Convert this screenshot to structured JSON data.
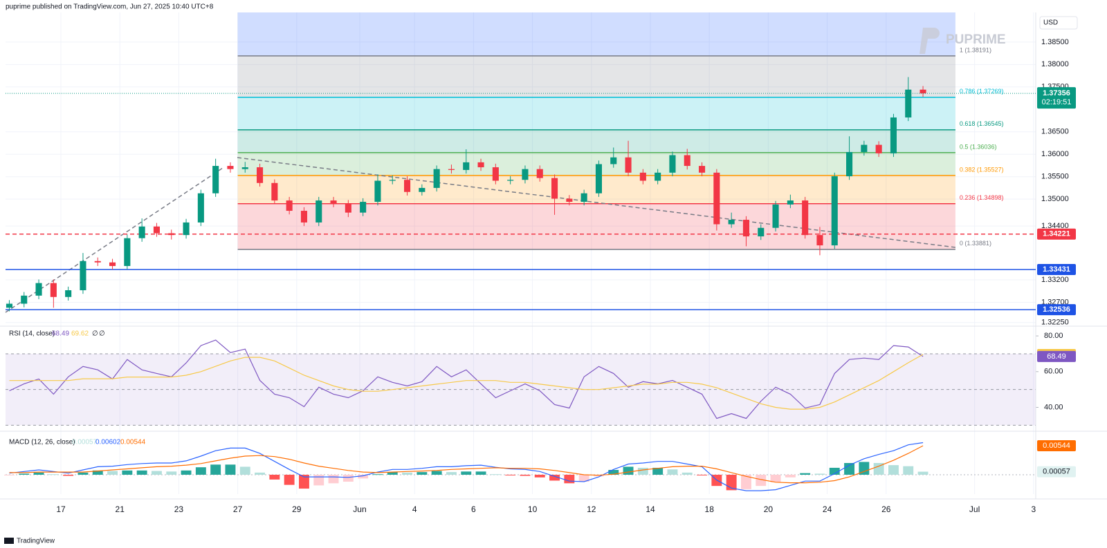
{
  "header": "puprime published on TradingView.com, Jun 27, 2025 10:40 UTC+8",
  "brand": "PUPRIME",
  "footer": "TradingView",
  "chart_data": {
    "type": "candlestick",
    "currency": "USD",
    "countdown": "02:19:51",
    "up_color": "#089981",
    "down_color": "#f23645",
    "grid": true,
    "xlim": [
      -1.878,
      33.075
    ],
    "xticks": [
      {
        "value": 0,
        "label": "17"
      },
      {
        "value": 2,
        "label": "21"
      },
      {
        "value": 4,
        "label": "23"
      },
      {
        "value": 6,
        "label": "27"
      },
      {
        "value": 8,
        "label": "29"
      },
      {
        "value": 10.14,
        "label": "Jun"
      },
      {
        "value": 12,
        "label": "4"
      },
      {
        "value": 14,
        "label": "6"
      },
      {
        "value": 16,
        "label": "10"
      },
      {
        "value": 18,
        "label": "12"
      },
      {
        "value": 20,
        "label": "14"
      },
      {
        "value": 22,
        "label": "18"
      },
      {
        "value": 24,
        "label": "20"
      },
      {
        "value": 26,
        "label": "24"
      },
      {
        "value": 28,
        "label": "26"
      },
      {
        "value": 31,
        "label": "Jul"
      },
      {
        "value": 33,
        "label": "3"
      }
    ],
    "ylim": [
      1.322,
      1.3916
    ],
    "yticks": [
      {
        "value": 1.385,
        "label": "1.38500"
      },
      {
        "value": 1.38,
        "label": "1.38000"
      },
      {
        "value": 1.375,
        "label": "1.37500"
      },
      {
        "value": 1.365,
        "label": "1.36500"
      },
      {
        "value": 1.36,
        "label": "1.36000"
      },
      {
        "value": 1.355,
        "label": "1.35500"
      },
      {
        "value": 1.35,
        "label": "1.35000"
      },
      {
        "value": 1.344,
        "label": "1.34400"
      },
      {
        "value": 1.332,
        "label": "1.33200"
      },
      {
        "value": 1.327,
        "label": "1.32700"
      },
      {
        "value": 1.3225,
        "label": "1.32250"
      }
    ],
    "x": [
      -1.75,
      -1.25,
      -0.75,
      -0.25,
      0.25,
      0.75,
      1.25,
      1.75,
      2.25,
      2.75,
      3.25,
      3.75,
      4.25,
      4.75,
      5.25,
      5.75,
      6.25,
      6.75,
      7.25,
      7.75,
      8.25,
      8.75,
      9.25,
      9.75,
      10.25,
      10.75,
      11.25,
      11.75,
      12.25,
      12.75,
      13.25,
      13.75,
      14.25,
      14.75,
      15.25,
      15.75,
      16.25,
      16.75,
      17.25,
      17.75,
      18.25,
      18.75,
      19.25,
      19.75,
      20.25,
      20.75,
      21.25,
      21.75,
      22.25,
      22.75,
      23.25,
      23.75,
      24.25,
      24.75,
      25.25,
      25.75,
      26.25,
      26.75,
      27.25,
      27.75,
      28.25,
      28.75,
      29.25
    ],
    "open": [
      1.3258,
      1.3267,
      1.3285,
      1.3313,
      1.3282,
      1.3297,
      1.3362,
      1.3359,
      1.3351,
      1.3413,
      1.3439,
      1.3424,
      1.342,
      1.3448,
      1.3513,
      1.3574,
      1.3567,
      1.3571,
      1.3536,
      1.3497,
      1.3474,
      1.3448,
      1.3497,
      1.349,
      1.347,
      1.3494,
      1.3541,
      1.3543,
      1.3516,
      1.3525,
      1.3567,
      1.3565,
      1.3582,
      1.3571,
      1.3541,
      1.3543,
      1.3567,
      1.3547,
      1.3501,
      1.3494,
      1.3513,
      1.3578,
      1.3593,
      1.3559,
      1.3541,
      1.3559,
      1.3598,
      1.3574,
      1.3559,
      1.3444,
      1.3454,
      1.3417,
      1.3436,
      1.3488,
      1.3497,
      1.342,
      1.3397,
      1.3551,
      1.3605,
      1.3621,
      1.3602,
      1.3682,
      1.3744
    ],
    "high": [
      1.3275,
      1.3293,
      1.3321,
      1.3321,
      1.3305,
      1.338,
      1.337,
      1.3367,
      1.3421,
      1.3457,
      1.3447,
      1.3432,
      1.3456,
      1.3521,
      1.359,
      1.3582,
      1.3583,
      1.3579,
      1.3544,
      1.3505,
      1.3482,
      1.3505,
      1.3505,
      1.3498,
      1.3502,
      1.3555,
      1.3553,
      1.3551,
      1.3533,
      1.3575,
      1.3577,
      1.3611,
      1.359,
      1.3579,
      1.3551,
      1.3575,
      1.3575,
      1.3555,
      1.3509,
      1.3521,
      1.3586,
      1.3615,
      1.363,
      1.3567,
      1.3567,
      1.3606,
      1.3612,
      1.3582,
      1.3567,
      1.347,
      1.3462,
      1.3444,
      1.3496,
      1.351,
      1.3505,
      1.3438,
      1.3559,
      1.364,
      1.363,
      1.3629,
      1.369,
      1.3772,
      1.3752
    ],
    "low": [
      1.325,
      1.3259,
      1.3277,
      1.3258,
      1.3274,
      1.3289,
      1.3351,
      1.3343,
      1.3343,
      1.3405,
      1.3416,
      1.341,
      1.3412,
      1.344,
      1.3505,
      1.3559,
      1.3559,
      1.3528,
      1.3489,
      1.3466,
      1.344,
      1.344,
      1.3482,
      1.346,
      1.3462,
      1.3486,
      1.3533,
      1.3508,
      1.3508,
      1.3517,
      1.3557,
      1.3557,
      1.3563,
      1.3533,
      1.3533,
      1.3535,
      1.3539,
      1.3465,
      1.3486,
      1.3486,
      1.3505,
      1.357,
      1.3551,
      1.3533,
      1.3533,
      1.3551,
      1.3566,
      1.3551,
      1.343,
      1.3436,
      1.3395,
      1.3409,
      1.3428,
      1.348,
      1.3412,
      1.3375,
      1.3389,
      1.3543,
      1.3597,
      1.3594,
      1.3594,
      1.3674,
      1.3728
    ],
    "close": [
      1.3267,
      1.3285,
      1.3313,
      1.3282,
      1.3297,
      1.3362,
      1.3359,
      1.3351,
      1.3413,
      1.3439,
      1.3424,
      1.342,
      1.3448,
      1.3513,
      1.3574,
      1.3567,
      1.3571,
      1.3536,
      1.3497,
      1.3474,
      1.3448,
      1.3497,
      1.349,
      1.347,
      1.3494,
      1.3541,
      1.3543,
      1.3516,
      1.3525,
      1.3567,
      1.3565,
      1.3582,
      1.3571,
      1.3541,
      1.3543,
      1.3567,
      1.3547,
      1.3501,
      1.3494,
      1.3513,
      1.3578,
      1.3593,
      1.3559,
      1.3541,
      1.3559,
      1.3598,
      1.3574,
      1.3559,
      1.3444,
      1.3454,
      1.3417,
      1.3436,
      1.3488,
      1.3497,
      1.342,
      1.3397,
      1.3551,
      1.3605,
      1.3621,
      1.3602,
      1.3682,
      1.3744,
      1.37356
    ],
    "last_price_color": "#089981",
    "fib": {
      "x_range": [
        6,
        30.35
      ],
      "top_color": "#2962ff",
      "levels": [
        {
          "ratio": 1,
          "price": 1.38191,
          "label": "1 (1.38191)",
          "color": "#787b86"
        },
        {
          "ratio": 0.786,
          "price": 1.37269,
          "label": "0.786 (1.37269)",
          "color": "#00bcd4"
        },
        {
          "ratio": 0.618,
          "price": 1.36545,
          "label": "0.618 (1.36545)",
          "color": "#089981"
        },
        {
          "ratio": 0.5,
          "price": 1.36036,
          "label": "0.5 (1.36036)",
          "color": "#4caf50"
        },
        {
          "ratio": 0.382,
          "price": 1.35527,
          "label": "0.382 (1.35527)",
          "color": "#ff9800"
        },
        {
          "ratio": 0.236,
          "price": 1.34898,
          "label": "0.236 (1.34898)",
          "color": "#f23645"
        },
        {
          "ratio": 0,
          "price": 1.33881,
          "label": "0 (1.33881)",
          "color": "#787b86"
        }
      ]
    },
    "levels": [
      {
        "price": 1.34221,
        "color": "#f23645",
        "dashed": true
      },
      {
        "price": 1.33431,
        "color": "#1e53e5",
        "dashed": false
      },
      {
        "price": 1.32536,
        "color": "#1e53e5",
        "dashed": false
      }
    ],
    "rsi": {
      "title": "RSI (14, close)",
      "na_marks": [
        "∅",
        "∅"
      ],
      "ylim": [
        28.2,
        84.3
      ],
      "yticks": [
        {
          "value": 80,
          "label": "80.00"
        },
        {
          "value": 60,
          "label": "60.00"
        },
        {
          "value": 40,
          "label": "40.00"
        }
      ],
      "bands": [
        70,
        50,
        30
      ],
      "band_color": "#7e57c2",
      "series": [
        {
          "color": "#7e57c2",
          "values": [
            49.3,
            53.2,
            55.9,
            47.4,
            57.1,
            62.9,
            61.0,
            55.9,
            66.8,
            61.0,
            59.0,
            57.1,
            64.9,
            74.6,
            77.7,
            70.7,
            72.6,
            55.1,
            47.4,
            45.4,
            40.4,
            51.3,
            47.4,
            45.4,
            49.3,
            57.1,
            54.0,
            52.0,
            54.4,
            62.9,
            57.1,
            61.0,
            53.2,
            45.4,
            49.3,
            53.2,
            49.3,
            41.6,
            39.6,
            57.1,
            62.9,
            59.0,
            51.3,
            54.4,
            53.2,
            55.1,
            51.3,
            47.4,
            33.8,
            36.5,
            33.8,
            43.5,
            51.3,
            47.4,
            39.6,
            41.6,
            59.0,
            66.8,
            67.6,
            66.8,
            74.6,
            73.8,
            68.49
          ]
        },
        {
          "color": "#f7c948",
          "values": [
            55,
            55,
            55,
            55,
            55,
            56,
            56,
            56,
            57,
            57,
            57,
            57,
            58,
            60,
            63,
            66,
            68,
            68,
            66,
            62,
            58,
            55,
            52,
            50,
            49,
            49,
            50,
            51,
            52,
            53,
            54,
            55,
            55,
            55,
            54,
            54,
            53,
            52,
            51,
            50,
            50,
            51,
            52,
            53,
            53,
            54,
            54,
            53,
            51,
            48,
            45,
            42,
            40,
            39,
            39,
            40,
            43,
            47,
            51,
            55,
            60,
            65,
            69.62
          ]
        }
      ]
    },
    "macd": {
      "title": "MACD (12, 26, close)",
      "ylim": [
        -0.00363,
        0.00764
      ],
      "series": [
        {
          "kind": "histogram",
          "colors": [
            "#26a69a",
            "#b2dfdb",
            "#ffcdd2",
            "#ff5252"
          ],
          "values": [
            -0.0001,
            0.0002,
            0.0004,
            0.0001,
            -0.0002,
            0.0004,
            0.0008,
            0.0007,
            0.0008,
            0.0008,
            0.0007,
            0.0006,
            0.0008,
            0.0014,
            0.0019,
            0.0019,
            0.0015,
            0.0004,
            -0.0009,
            -0.0019,
            -0.0026,
            -0.002,
            -0.0016,
            -0.0013,
            -0.0007,
            0.0001,
            0.0005,
            0.0004,
            0.0005,
            0.0007,
            0.0005,
            0.0006,
            0.0006,
            0.0001,
            -0.0001,
            -0.0002,
            -0.0005,
            -0.0011,
            -0.0016,
            -0.0013,
            -0.0003,
            0.0009,
            0.0015,
            0.0013,
            0.0013,
            0.001,
            0.0004,
            -0.0001,
            -0.0021,
            -0.0029,
            -0.0027,
            -0.0021,
            -0.0014,
            -0.0005,
            0.0003,
            0.0002,
            0.0013,
            0.0022,
            0.0024,
            0.0022,
            0.0018,
            0.0016,
            0.00057
          ]
        },
        {
          "kind": "line",
          "color": "#2962ff",
          "values": [
            0.0003,
            0.0006,
            0.0009,
            0.0006,
            0.0003,
            0.0009,
            0.0015,
            0.0016,
            0.0019,
            0.0021,
            0.0022,
            0.0022,
            0.0026,
            0.0035,
            0.0045,
            0.005,
            0.005,
            0.004,
            0.0025,
            0.001,
            -0.0004,
            -0.0004,
            -0.0004,
            -0.0005,
            -0.0002,
            0.0005,
            0.001,
            0.001,
            0.0012,
            0.0015,
            0.0015,
            0.0017,
            0.0018,
            0.0014,
            0.0011,
            0.001,
            0.0006,
            -0.0003,
            -0.0012,
            -0.0013,
            -0.0004,
            0.001,
            0.002,
            0.0022,
            0.0025,
            0.0025,
            0.002,
            0.0015,
            -0.001,
            -0.0025,
            -0.003,
            -0.003,
            -0.0028,
            -0.002,
            -0.0012,
            -0.0012,
            0.0002,
            0.0018,
            0.003,
            0.0038,
            0.0045,
            0.0056,
            0.00602
          ]
        },
        {
          "kind": "line",
          "color": "#ff6d00",
          "values": [
            0.0004,
            0.0004,
            0.0005,
            0.0005,
            0.0005,
            0.0005,
            0.0007,
            0.0009,
            0.0011,
            0.0013,
            0.0015,
            0.0016,
            0.0018,
            0.0021,
            0.0026,
            0.0031,
            0.0035,
            0.0036,
            0.0034,
            0.0029,
            0.0022,
            0.0016,
            0.0012,
            0.0008,
            0.0005,
            0.0004,
            0.0005,
            0.0006,
            0.0007,
            0.0008,
            0.001,
            0.0011,
            0.0012,
            0.0013,
            0.0012,
            0.0012,
            0.0011,
            0.0008,
            0.0004,
            0.0,
            -0.0001,
            0.0001,
            0.0005,
            0.0009,
            0.0012,
            0.0015,
            0.0016,
            0.0016,
            0.0011,
            0.0004,
            -0.0003,
            -0.0009,
            -0.0014,
            -0.0015,
            -0.0015,
            -0.0014,
            -0.0011,
            -0.0004,
            0.0006,
            0.0016,
            0.0027,
            0.004,
            0.00544
          ]
        }
      ]
    }
  }
}
